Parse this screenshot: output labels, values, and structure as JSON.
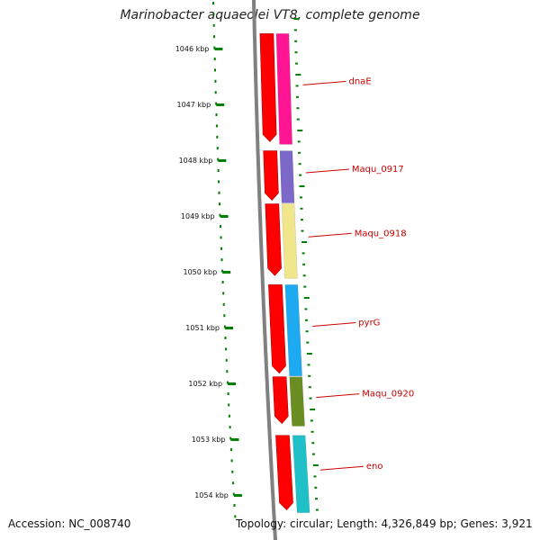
{
  "title": "Marinobacter aquaeolei VT8, complete genome",
  "accession": "Accession: NC_008740",
  "topology": "Topology: circular; Length: 4,326,849 bp; Genes: 3,921",
  "colors": {
    "backbone": "#808080",
    "forward_strand": "#ff0000",
    "tick_minor": "#008000",
    "label": "#cc0000"
  },
  "scale": {
    "ticks": [
      {
        "label": "1046 kbp",
        "kbp": 1046
      },
      {
        "label": "1047 kbp",
        "kbp": 1047
      },
      {
        "label": "1048 kbp",
        "kbp": 1048
      },
      {
        "label": "1049 kbp",
        "kbp": 1049
      },
      {
        "label": "1050 kbp",
        "kbp": 1050
      },
      {
        "label": "1051 kbp",
        "kbp": 1051
      },
      {
        "label": "1052 kbp",
        "kbp": 1052
      },
      {
        "label": "1053 kbp",
        "kbp": 1053
      },
      {
        "label": "1054 kbp",
        "kbp": 1054
      }
    ]
  },
  "genes": [
    {
      "name": "dnaE",
      "color": "#ff1493",
      "start_kbp": 1045.7,
      "end_kbp": 1047.7
    },
    {
      "name": "Maqu_0917",
      "color": "#7b68c8",
      "start_kbp": 1047.8,
      "end_kbp": 1048.75
    },
    {
      "name": "Maqu_0918",
      "color": "#f0e68c",
      "start_kbp": 1048.75,
      "end_kbp": 1050.1
    },
    {
      "name": "pyrG",
      "color": "#1eaaf0",
      "start_kbp": 1050.2,
      "end_kbp": 1051.85
    },
    {
      "name": "Maqu_0920",
      "color": "#6b8e23",
      "start_kbp": 1051.85,
      "end_kbp": 1052.75
    },
    {
      "name": "eno",
      "color": "#20c0c8",
      "start_kbp": 1052.9,
      "end_kbp": 1054.3
    }
  ]
}
